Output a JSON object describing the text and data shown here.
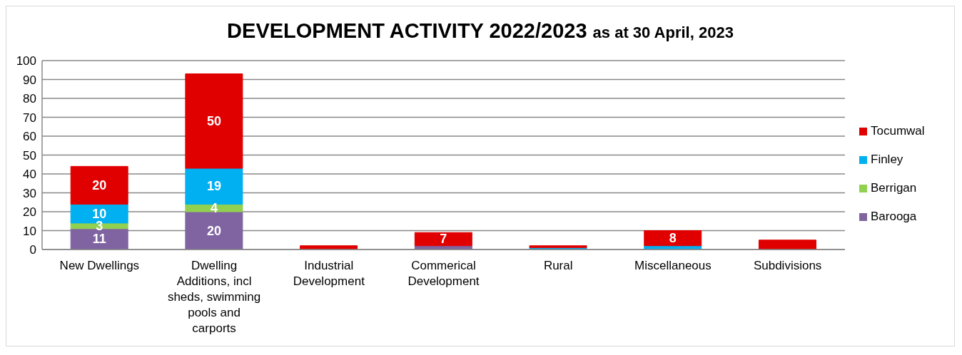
{
  "chart_data": {
    "type": "bar",
    "title": "DEVELOPMENT ACTIVITY 2022/2023",
    "subtitle": "as at 30 April, 2023",
    "categories": [
      "New Dwellings",
      "Dwelling Additions, incl sheds, swimming pools and carports",
      "Industrial Development",
      "Commerical Development",
      "Rural",
      "Miscellaneous",
      "Subdivisions"
    ],
    "stacked": true,
    "series": [
      {
        "name": "Barooga",
        "color": "#8064a2",
        "values": [
          11,
          20,
          0,
          2,
          0,
          0,
          0
        ],
        "value_labels": [
          "11",
          "20",
          null,
          null,
          null,
          null,
          null
        ]
      },
      {
        "name": "Berrigan",
        "color": "#92d050",
        "values": [
          3,
          4,
          0,
          0,
          0,
          0,
          0
        ],
        "value_labels": [
          "3",
          "4",
          null,
          null,
          null,
          null,
          null
        ]
      },
      {
        "name": "Finley",
        "color": "#00b0f0",
        "values": [
          10,
          19,
          0,
          0,
          1,
          2,
          0
        ],
        "value_labels": [
          "10",
          "19",
          null,
          null,
          null,
          null,
          null
        ]
      },
      {
        "name": "Tocumwal",
        "color": "#e00000",
        "values": [
          20,
          50,
          2,
          7,
          1,
          8,
          5
        ],
        "value_labels": [
          "20",
          "50",
          null,
          "7",
          null,
          "8",
          null
        ]
      }
    ],
    "ylim": [
      0,
      100
    ],
    "yticks": [
      0,
      10,
      20,
      30,
      40,
      50,
      60,
      70,
      80,
      90,
      100
    ],
    "grid": "y",
    "legend": "right"
  }
}
